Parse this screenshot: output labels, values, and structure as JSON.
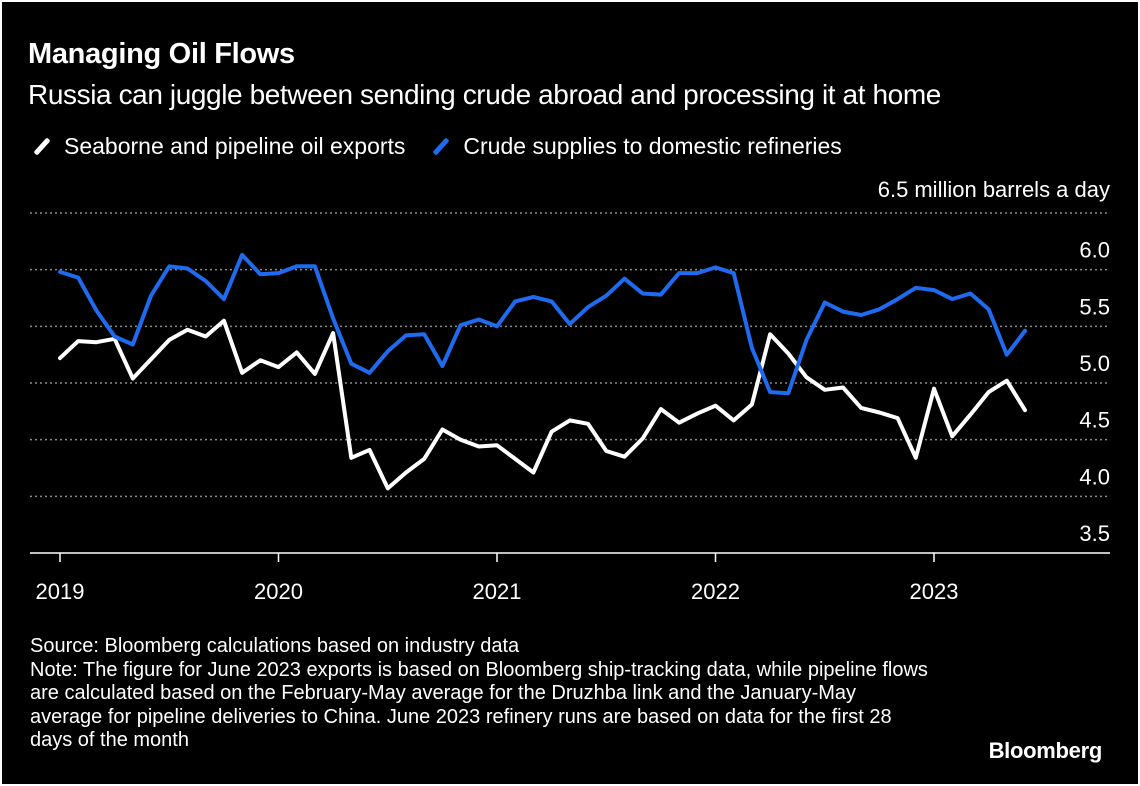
{
  "title": "Managing Oil Flows",
  "subtitle": "Russia can juggle between sending crude abroad and processing it at home",
  "legend": [
    {
      "label": "Seaborne and pipeline oil exports",
      "color": "#ffffff"
    },
    {
      "label": "Crude supplies to domestic refineries",
      "color": "#1f6bf0"
    }
  ],
  "footer": {
    "source": "Source: Bloomberg calculations based on industry data",
    "note": "Note: The figure for June 2023 exports is based on Bloomberg ship-tracking data, while pipeline flows are calculated based on the February-May average for the Druzhba link and the January-May average for pipeline deliveries to China. June 2023 refinery runs are based on data for the first 28 days of the month"
  },
  "brand": "Bloomberg",
  "chart_data": {
    "type": "line",
    "title": "Managing Oil Flows",
    "ylabel": "million barrels a day",
    "ylim": [
      3.5,
      6.5
    ],
    "yticks": [
      3.5,
      4.0,
      4.5,
      5.0,
      5.5,
      6.0,
      6.5
    ],
    "ytick_labels": [
      "3.5",
      "4.0",
      "4.5",
      "5.0",
      "5.5",
      "6.0",
      "6.5"
    ],
    "xticks": [
      2019,
      2020,
      2021,
      2022,
      2023
    ],
    "xtick_labels": [
      "2019",
      "2020",
      "2021",
      "2022",
      "2023"
    ],
    "xlim": [
      2019,
      2023.9
    ],
    "x_start": "Jan 2019",
    "x_end": "Jun 2023",
    "frequency": "monthly",
    "grid": true,
    "series": [
      {
        "name": "Seaborne and pipeline oil exports",
        "color": "#ffffff",
        "values": [
          5.22,
          5.37,
          5.36,
          5.39,
          5.04,
          5.21,
          5.38,
          5.47,
          5.41,
          5.55,
          5.09,
          5.2,
          5.14,
          5.27,
          5.08,
          5.44,
          4.34,
          4.41,
          4.07,
          4.21,
          4.33,
          4.59,
          4.5,
          4.44,
          4.45,
          4.33,
          4.21,
          4.57,
          4.67,
          4.64,
          4.4,
          4.35,
          4.51,
          4.77,
          4.65,
          4.73,
          4.8,
          4.67,
          4.81,
          5.43,
          5.26,
          5.05,
          4.94,
          4.96,
          4.78,
          4.74,
          4.69,
          4.34,
          4.95,
          4.53,
          4.72,
          4.92,
          5.02,
          4.76
        ]
      },
      {
        "name": "Crude supplies to domestic refineries",
        "color": "#1f6bf0",
        "values": [
          5.98,
          5.93,
          5.64,
          5.41,
          5.34,
          5.77,
          6.03,
          6.01,
          5.9,
          5.74,
          6.13,
          5.96,
          5.97,
          6.03,
          6.03,
          5.57,
          5.17,
          5.09,
          5.28,
          5.42,
          5.43,
          5.15,
          5.51,
          5.56,
          5.5,
          5.72,
          5.76,
          5.72,
          5.52,
          5.67,
          5.77,
          5.92,
          5.79,
          5.78,
          5.97,
          5.97,
          6.02,
          5.97,
          5.31,
          4.92,
          4.91,
          5.38,
          5.71,
          5.63,
          5.6,
          5.65,
          5.74,
          5.84,
          5.82,
          5.74,
          5.79,
          5.65,
          5.25,
          5.46
        ]
      }
    ]
  }
}
